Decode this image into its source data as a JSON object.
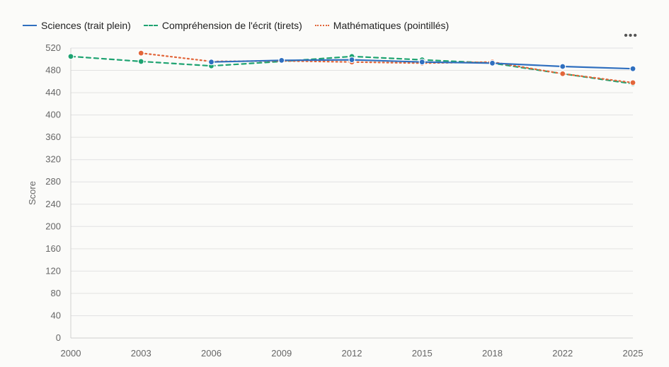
{
  "colors": {
    "sciences": "#2f6fbf",
    "comprehension": "#1ea371",
    "maths": "#e2663a"
  },
  "legend": [
    {
      "key": "sciences",
      "label": "Sciences (trait plein)"
    },
    {
      "key": "comprehension",
      "label": "Compréhension de l'écrit (tirets)"
    },
    {
      "key": "maths",
      "label": "Mathématiques (pointillés)"
    }
  ],
  "menu_label": "•••",
  "chart_data": {
    "type": "line",
    "title": "",
    "xlabel": "",
    "ylabel": "Score",
    "x": [
      "2000",
      "2003",
      "2006",
      "2009",
      "2012",
      "2015",
      "2018",
      "2022",
      "2025"
    ],
    "ylim": [
      0,
      520
    ],
    "yticks": [
      0,
      40,
      80,
      120,
      160,
      200,
      240,
      280,
      320,
      360,
      400,
      440,
      480,
      520
    ],
    "grid": true,
    "legend_position": "top-left",
    "series": [
      {
        "name": "Compréhension de l'écrit (tirets)",
        "key": "comprehension",
        "dash": "dashed",
        "values": [
          505,
          496,
          488,
          496,
          505,
          499,
          493,
          474,
          456
        ]
      },
      {
        "name": "Mathématiques (pointillés)",
        "key": "maths",
        "dash": "dotted",
        "values": [
          null,
          511,
          496,
          497,
          495,
          493,
          495,
          474,
          458
        ]
      },
      {
        "name": "Sciences (trait plein)",
        "key": "sciences",
        "dash": "solid",
        "values": [
          null,
          null,
          495,
          498,
          499,
          495,
          493,
          487,
          483
        ]
      }
    ]
  }
}
